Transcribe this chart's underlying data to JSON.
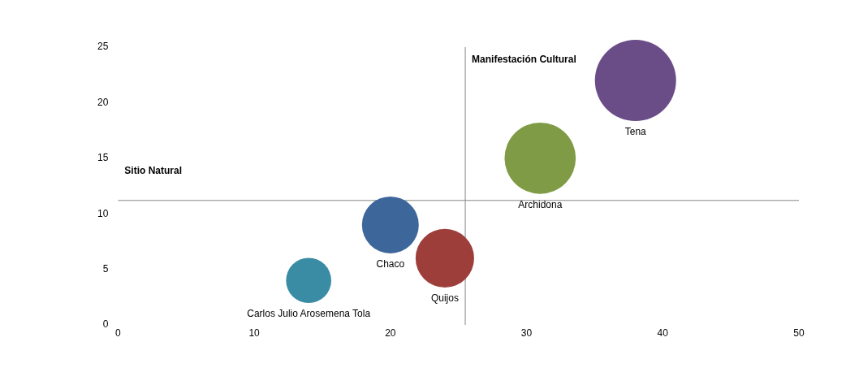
{
  "chart_data": {
    "type": "bubble",
    "series": [
      {
        "name": "Tena",
        "color": "#6a4c87",
        "x": [
          38
        ],
        "values": [
          22
        ],
        "sizes": [
          1
        ]
      },
      {
        "name": "Archidona",
        "color": "#7f9b45",
        "x": [
          31
        ],
        "values": [
          15
        ],
        "sizes": [
          0.77
        ]
      },
      {
        "name": "Chaco",
        "color": "#3d679b",
        "x": [
          20
        ],
        "values": [
          9
        ],
        "sizes": [
          0.49
        ]
      },
      {
        "name": "Quijos",
        "color": "#9e3e3b",
        "x": [
          24
        ],
        "values": [
          6
        ],
        "sizes": [
          0.52
        ]
      },
      {
        "name": "Carlos Julio Arosemena Tola",
        "color": "#3a8ca4",
        "x": [
          14
        ],
        "values": [
          4
        ],
        "sizes": [
          0.31
        ]
      }
    ],
    "xlim": [
      0,
      50
    ],
    "xticks": [
      0,
      10,
      20,
      30,
      40,
      50
    ],
    "ylim": [
      0,
      25
    ],
    "yticks": [
      0,
      5,
      10,
      15,
      20,
      25
    ],
    "ref_lines": [
      {
        "axis": "x",
        "value": 25.5,
        "color": "#868686"
      },
      {
        "axis": "y",
        "value": 11.2,
        "color": "#868686"
      }
    ],
    "annotations": [
      "Sitio Natural",
      "Manifestación Cultural"
    ],
    "grid": false,
    "legend": false
  }
}
